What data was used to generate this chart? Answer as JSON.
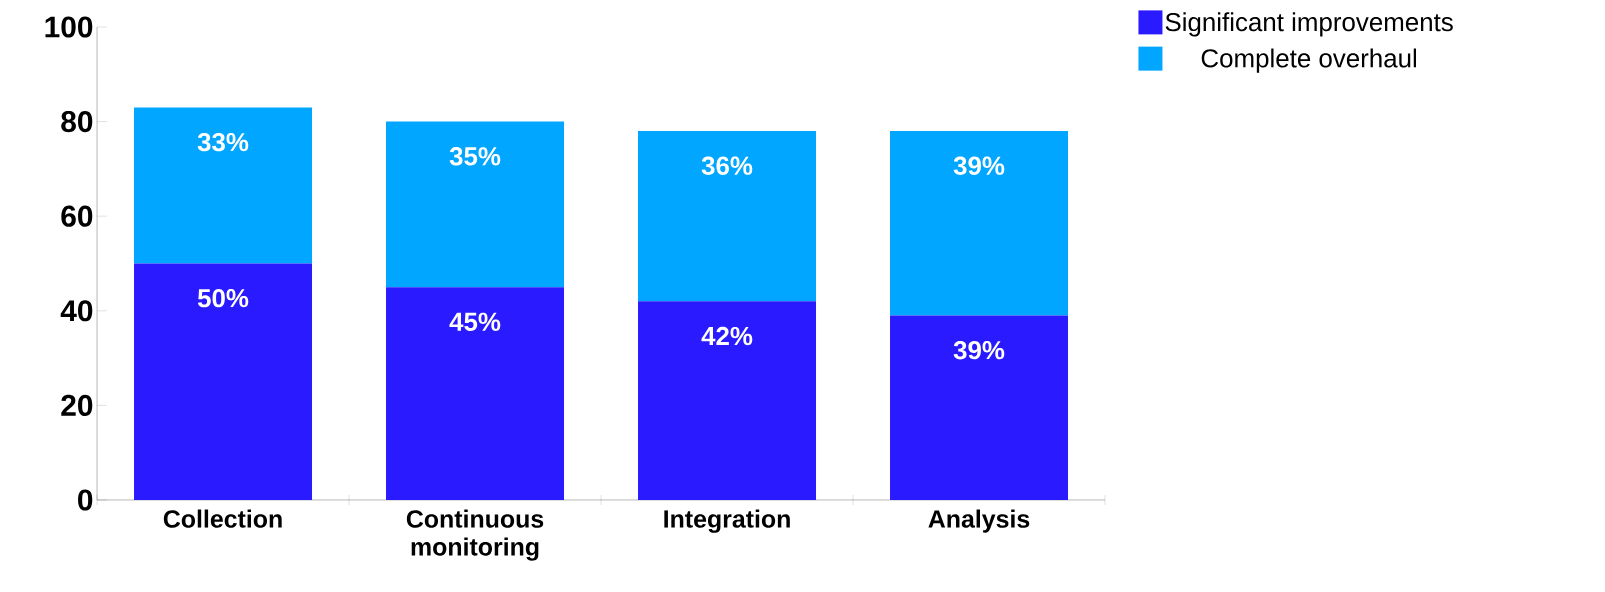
{
  "chart_data": {
    "type": "bar",
    "stacked": true,
    "categories": [
      "Collection",
      "Continuous monitoring",
      "Integration",
      "Analysis"
    ],
    "series": [
      {
        "name": "Significant improvements",
        "color": "#2a1aff",
        "values": [
          50,
          45,
          42,
          39
        ],
        "value_labels": [
          "50%",
          "45%",
          "42%",
          "39%"
        ]
      },
      {
        "name": "Complete overhaul",
        "color": "#00a6ff",
        "values": [
          33,
          35,
          36,
          39
        ],
        "value_labels": [
          "33%",
          "35%",
          "36%",
          "39%"
        ]
      }
    ],
    "ylim": [
      0,
      100
    ],
    "yticks": [
      0,
      20,
      40,
      60,
      80,
      100
    ],
    "grid": false,
    "legend": "top right"
  }
}
